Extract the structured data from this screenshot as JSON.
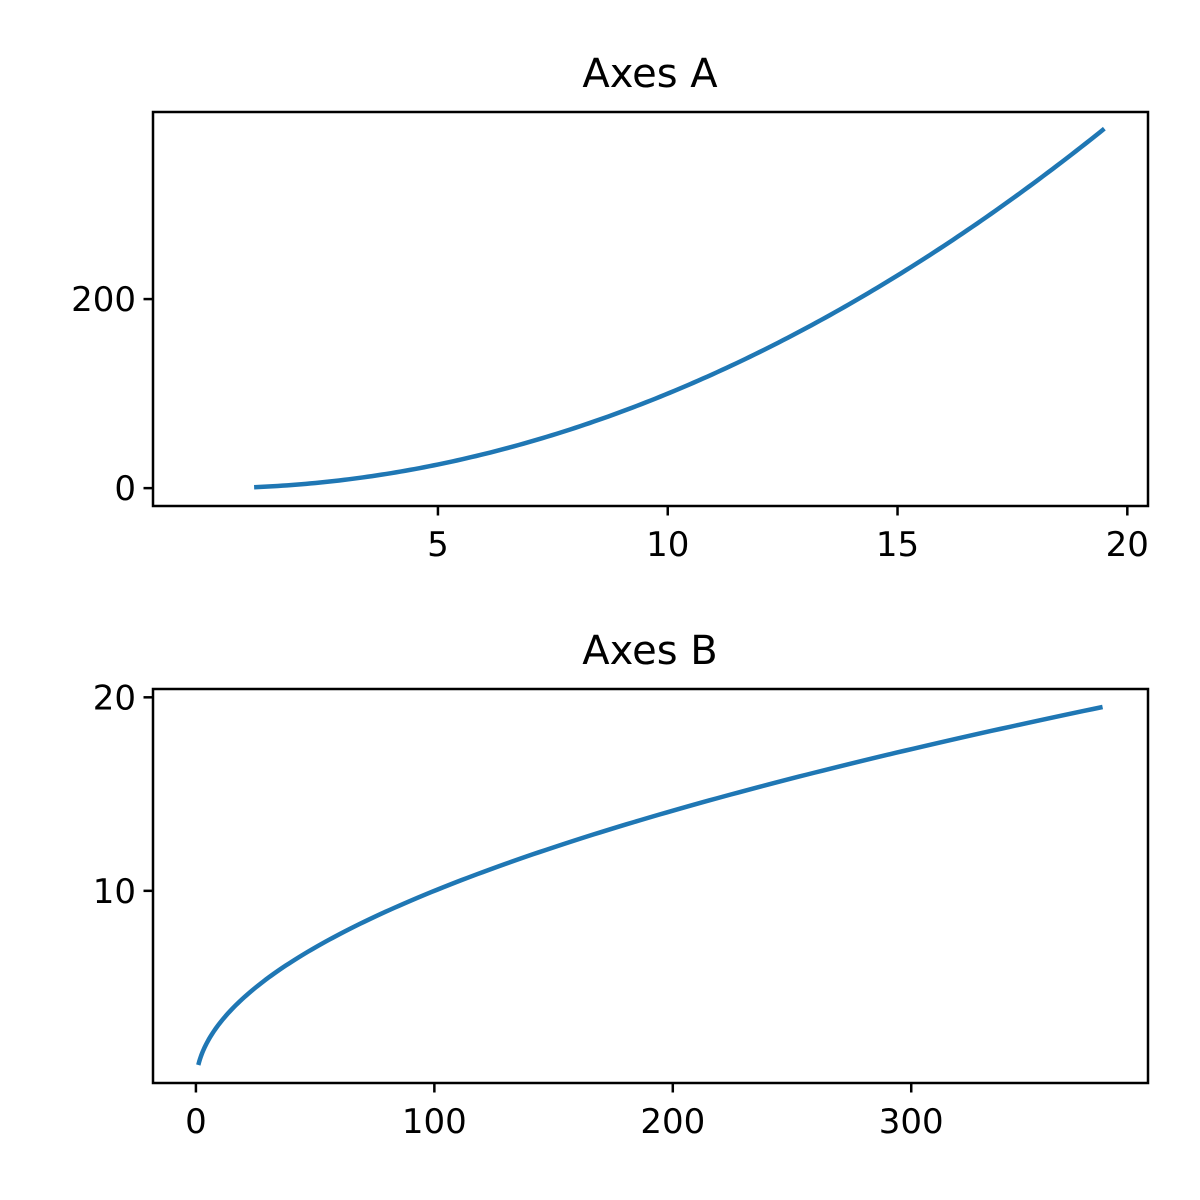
{
  "chart_data": [
    {
      "type": "line",
      "title": "Axes A",
      "xlabel": "",
      "ylabel": "",
      "xlim": [
        -1.2,
        20.45
      ],
      "ylim": [
        -18.9,
        397.9
      ],
      "xticks": [
        5,
        10,
        15,
        20
      ],
      "yticks": [
        0,
        200
      ],
      "grid": false,
      "color": "#1f77b4",
      "series": [
        {
          "x": [
            1,
            2,
            3,
            4,
            5,
            6,
            7,
            8,
            9,
            10,
            11,
            12,
            13,
            14,
            15,
            16,
            17,
            18,
            19,
            19.5
          ],
          "y": [
            1,
            4,
            9,
            16,
            25,
            36,
            49,
            64,
            81,
            100,
            121,
            144,
            169,
            196,
            225,
            256,
            289,
            324,
            361,
            380.25
          ]
        }
      ]
    },
    {
      "type": "line",
      "title": "Axes B",
      "xlabel": "",
      "ylabel": "",
      "xlim": [
        -18.0,
        399.3
      ],
      "ylim": [
        0.07,
        20.43
      ],
      "xticks": [
        0,
        100,
        200,
        300
      ],
      "yticks": [
        10,
        20
      ],
      "grid": false,
      "color": "#1f77b4",
      "series": [
        {
          "x": [
            1,
            4,
            9,
            16,
            25,
            36,
            49,
            64,
            81,
            100,
            121,
            144,
            169,
            196,
            225,
            256,
            289,
            324,
            361,
            380.25
          ],
          "y": [
            1,
            2,
            3,
            4,
            5,
            6,
            7,
            8,
            9,
            10,
            11,
            12,
            13,
            14,
            15,
            16,
            17,
            18,
            19,
            19.5
          ]
        }
      ]
    }
  ]
}
